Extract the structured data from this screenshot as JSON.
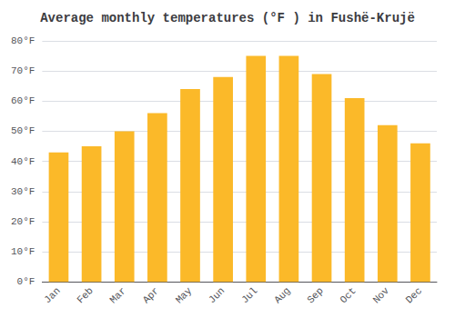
{
  "chart_data": {
    "type": "bar",
    "title": "Average monthly temperatures (°F ) in Fushë-Krujë",
    "categories": [
      "Jan",
      "Feb",
      "Mar",
      "Apr",
      "May",
      "Jun",
      "Jul",
      "Aug",
      "Sep",
      "Oct",
      "Nov",
      "Dec"
    ],
    "values": [
      43,
      45,
      50,
      56,
      64,
      68,
      75,
      75,
      69,
      61,
      52,
      46
    ],
    "color": "#FBB929",
    "ylim": [
      0,
      80
    ],
    "yticks": [
      {
        "value": 0,
        "label": "0°F"
      },
      {
        "value": 10,
        "label": "10°F"
      },
      {
        "value": 20,
        "label": "20°F"
      },
      {
        "value": 30,
        "label": "30°F"
      },
      {
        "value": 40,
        "label": "40°F"
      },
      {
        "value": 50,
        "label": "50°F"
      },
      {
        "value": 60,
        "label": "60°F"
      },
      {
        "value": 70,
        "label": "70°F"
      },
      {
        "value": 80,
        "label": "80°F"
      }
    ],
    "grid": true
  }
}
